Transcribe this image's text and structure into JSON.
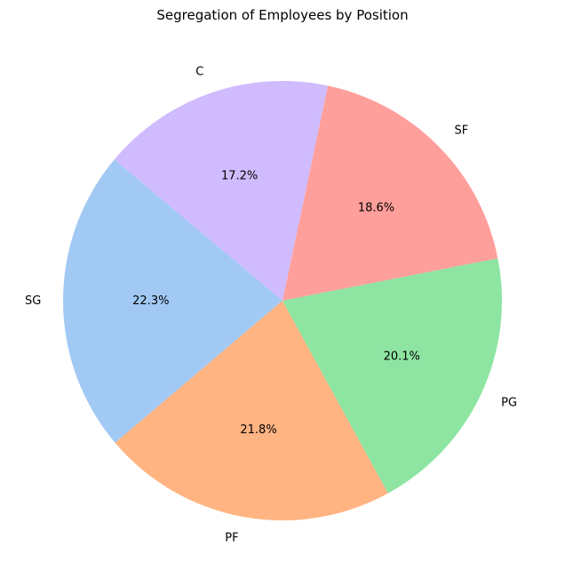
{
  "chart_data": {
    "type": "pie",
    "title": "Segregation of Employees by Position",
    "labels": [
      "SG",
      "PF",
      "PG",
      "SF",
      "C"
    ],
    "values": [
      22.3,
      21.8,
      20.1,
      18.6,
      17.2
    ],
    "value_labels": [
      "22.3%",
      "21.8%",
      "20.1%",
      "18.6%",
      "17.2%"
    ],
    "colors": [
      "#a1c9f4",
      "#ffb482",
      "#8de5a1",
      "#ff9f9b",
      "#d0bbff"
    ],
    "start_angle": 140,
    "direction": "counterclockwise",
    "legend": "none"
  }
}
